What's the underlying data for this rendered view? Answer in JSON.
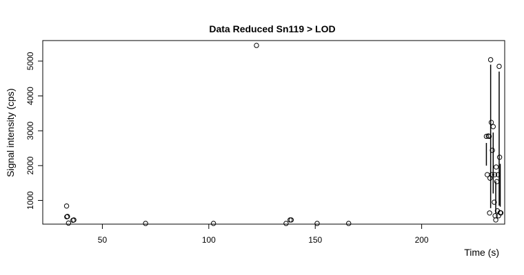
{
  "chart_data": {
    "type": "scatter",
    "title": "Data Reduced Sn119 > LOD",
    "xlabel": "Time (s)",
    "ylabel": "Signal intensity (cps)",
    "xlim": [
      22,
      239
    ],
    "ylim": [
      320,
      5590
    ],
    "xticks": [
      50,
      100,
      150,
      200
    ],
    "yticks": [
      1000,
      2000,
      3000,
      4000,
      5000
    ],
    "grid": false,
    "series": [
      {
        "points": [
          [
            33.2,
            840
          ],
          [
            33.3,
            530
          ],
          [
            33.6,
            540
          ],
          [
            34.1,
            350
          ],
          [
            36.2,
            430
          ],
          [
            36.6,
            440
          ],
          [
            70.3,
            340
          ],
          [
            102.2,
            340
          ],
          [
            122.4,
            5450
          ],
          [
            136.3,
            340
          ],
          [
            138.2,
            440
          ],
          [
            138.7,
            440
          ],
          [
            150.9,
            340
          ],
          [
            165.7,
            340
          ],
          [
            230.4,
            2840
          ],
          [
            230.8,
            1740
          ],
          [
            231.3,
            2850
          ],
          [
            231.7,
            2840
          ],
          [
            232.1,
            1640
          ],
          [
            231.9,
            640
          ],
          [
            232.4,
            5040
          ],
          [
            232.7,
            3240
          ],
          [
            232.9,
            1740
          ],
          [
            233.2,
            2440
          ],
          [
            233.6,
            3120
          ],
          [
            234.1,
            950
          ],
          [
            234.3,
            1740
          ],
          [
            234.5,
            560
          ],
          [
            234.8,
            440
          ],
          [
            235.0,
            1960
          ],
          [
            235.3,
            1540
          ],
          [
            235.6,
            700
          ],
          [
            235.9,
            1740
          ],
          [
            236.1,
            560
          ],
          [
            236.4,
            4850
          ],
          [
            236.6,
            2240
          ],
          [
            236.9,
            650
          ],
          [
            237.2,
            640
          ]
        ],
        "segments": [
          [
            [
              230.4,
              2650
            ],
            [
              230.4,
              2000
            ]
          ],
          [
            [
              232.4,
              4900
            ],
            [
              232.4,
              780
            ]
          ],
          [
            [
              233.6,
              2950
            ],
            [
              233.6,
              1200
            ]
          ],
          [
            [
              234.8,
              1550
            ],
            [
              234.8,
              620
            ]
          ],
          [
            [
              236.4,
              4700
            ],
            [
              236.4,
              850
            ]
          ],
          [
            [
              236.9,
              2050
            ],
            [
              236.9,
              820
            ]
          ]
        ]
      }
    ]
  }
}
